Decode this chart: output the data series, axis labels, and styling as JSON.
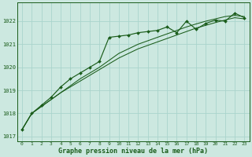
{
  "title": "Graphe pression niveau de la mer (hPa)",
  "bg_color": "#cce8e0",
  "plot_bg_color": "#cce8e0",
  "grid_color": "#aad4cc",
  "line_color": "#1a5c1a",
  "xlim": [
    -0.5,
    23.5
  ],
  "ylim": [
    1016.8,
    1022.8
  ],
  "yticks": [
    1017,
    1018,
    1019,
    1020,
    1021,
    1022
  ],
  "xticks": [
    0,
    1,
    2,
    3,
    4,
    5,
    6,
    7,
    8,
    9,
    10,
    11,
    12,
    13,
    14,
    15,
    16,
    17,
    18,
    19,
    20,
    21,
    22,
    23
  ],
  "series1": [
    1017.3,
    1018.0,
    1018.35,
    1018.7,
    1019.15,
    1019.5,
    1019.75,
    1020.0,
    1020.25,
    1021.3,
    1021.35,
    1021.4,
    1021.5,
    1021.55,
    1021.6,
    1021.75,
    1021.5,
    1022.0,
    1021.65,
    1021.9,
    1022.05,
    1022.0,
    1022.35,
    1022.15
  ],
  "series2": [
    1017.3,
    1018.0,
    1018.3,
    1018.6,
    1018.9,
    1019.2,
    1019.5,
    1019.75,
    1020.0,
    1020.3,
    1020.6,
    1020.8,
    1021.0,
    1021.15,
    1021.3,
    1021.45,
    1021.6,
    1021.75,
    1021.88,
    1022.0,
    1022.1,
    1022.2,
    1022.25,
    1022.2
  ],
  "series3": [
    1017.3,
    1018.0,
    1018.3,
    1018.6,
    1018.9,
    1019.15,
    1019.4,
    1019.65,
    1019.9,
    1020.15,
    1020.4,
    1020.6,
    1020.8,
    1020.95,
    1021.1,
    1021.25,
    1021.4,
    1021.55,
    1021.7,
    1021.82,
    1021.94,
    1022.05,
    1022.15,
    1022.1
  ]
}
